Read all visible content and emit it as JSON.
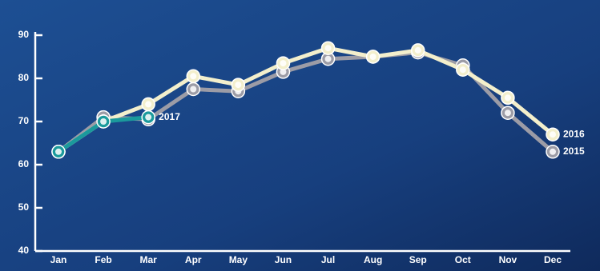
{
  "chart_data": {
    "type": "line",
    "categories": [
      "Jan",
      "Feb",
      "Mar",
      "Apr",
      "May",
      "Jun",
      "Jul",
      "Aug",
      "Sep",
      "Oct",
      "Nov",
      "Dec"
    ],
    "series": [
      {
        "name": "2015",
        "color": "#9c9ca6",
        "values": [
          63,
          71,
          70.5,
          77.5,
          77,
          81.5,
          84.5,
          85,
          86,
          83,
          72,
          63
        ]
      },
      {
        "name": "2016",
        "color": "#f3efcc",
        "values": [
          63,
          70,
          74,
          80.5,
          78.5,
          83.5,
          87,
          85,
          86.5,
          82,
          75.5,
          67
        ]
      },
      {
        "name": "2017",
        "color": "#1b9a9c",
        "values": [
          63,
          70,
          71,
          null,
          null,
          null,
          null,
          null,
          null,
          null,
          null,
          null
        ]
      }
    ],
    "ylim": [
      40,
      90
    ],
    "yticks": [
      40,
      50,
      60,
      70,
      80,
      90
    ],
    "grid": false
  }
}
